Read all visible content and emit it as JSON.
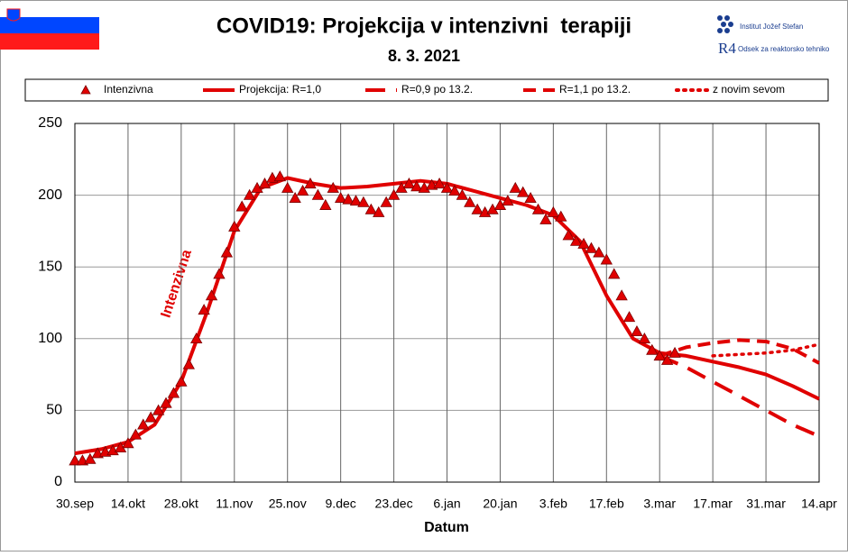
{
  "chart_data": {
    "type": "line",
    "title": "COVID19: Projekcija v intenzivni  terapiji",
    "subtitle": "8. 3. 2021",
    "logos": [
      "Institut Jožef Stefan",
      "R4",
      "Odsek za reaktorsko tehniko"
    ],
    "x_label": "Datum",
    "annotation": "Intenzivna",
    "xlim": [
      0,
      196
    ],
    "xticks": [
      {
        "value": 0,
        "label": "30.sep"
      },
      {
        "value": 14,
        "label": "14.okt"
      },
      {
        "value": 28,
        "label": "28.okt"
      },
      {
        "value": 42,
        "label": "11.nov"
      },
      {
        "value": 56,
        "label": "25.nov"
      },
      {
        "value": 70,
        "label": "9.dec"
      },
      {
        "value": 84,
        "label": "23.dec"
      },
      {
        "value": 98,
        "label": "6.jan"
      },
      {
        "value": 112,
        "label": "20.jan"
      },
      {
        "value": 126,
        "label": "3.feb"
      },
      {
        "value": 140,
        "label": "17.feb"
      },
      {
        "value": 154,
        "label": "3.mar"
      },
      {
        "value": 168,
        "label": "17.mar"
      },
      {
        "value": 182,
        "label": "31.mar"
      },
      {
        "value": 196,
        "label": "14.apr"
      }
    ],
    "ylim": [
      0,
      250
    ],
    "yticks": [
      0,
      50,
      100,
      150,
      200,
      250
    ],
    "grid": true,
    "series": [
      {
        "name": "Intenzivna",
        "color": "#e00000",
        "style": "triangle",
        "x": [
          0,
          2,
          4,
          6,
          8,
          10,
          12,
          14,
          16,
          18,
          20,
          22,
          24,
          26,
          28,
          30,
          32,
          34,
          36,
          38,
          40,
          42,
          44,
          46,
          48,
          50,
          52,
          54,
          56,
          58,
          60,
          62,
          64,
          66,
          68,
          70,
          72,
          74,
          76,
          78,
          80,
          82,
          84,
          86,
          88,
          90,
          92,
          94,
          96,
          98,
          100,
          102,
          104,
          106,
          108,
          110,
          112,
          114,
          116,
          118,
          120,
          122,
          124,
          126,
          128,
          130,
          132,
          134,
          136,
          138,
          140,
          142,
          144,
          146,
          148,
          150,
          152,
          154,
          156,
          158
        ],
        "values": [
          15,
          15,
          16,
          20,
          21,
          22,
          24,
          27,
          33,
          40,
          45,
          50,
          55,
          62,
          70,
          82,
          100,
          120,
          130,
          145,
          160,
          178,
          192,
          200,
          205,
          208,
          212,
          213,
          205,
          198,
          203,
          208,
          200,
          193,
          205,
          198,
          197,
          196,
          195,
          190,
          188,
          195,
          200,
          205,
          208,
          206,
          205,
          207,
          208,
          205,
          203,
          200,
          195,
          190,
          188,
          190,
          193,
          196,
          205,
          202,
          198,
          190,
          183,
          188,
          185,
          172,
          168,
          166,
          163,
          160,
          155,
          145,
          130,
          115,
          105,
          100,
          92,
          88,
          85,
          90
        ]
      },
      {
        "name": "Projekcija: R=1,0",
        "color": "#e00000",
        "style": "solid",
        "x": [
          0,
          7,
          14,
          21,
          28,
          35,
          42,
          49,
          56,
          63,
          70,
          77,
          84,
          91,
          98,
          105,
          112,
          119,
          126,
          133,
          140,
          147,
          154,
          161,
          168,
          175,
          182,
          189,
          196
        ],
        "values": [
          20,
          23,
          28,
          40,
          70,
          120,
          175,
          205,
          212,
          208,
          205,
          206,
          208,
          210,
          208,
          203,
          198,
          193,
          186,
          168,
          130,
          100,
          90,
          88,
          84,
          80,
          75,
          67,
          58
        ]
      },
      {
        "name": "R=0,9 po 13.2.",
        "color": "#e00000",
        "style": "longdash",
        "x": [
          154,
          161,
          168,
          175,
          182,
          189,
          196
        ],
        "values": [
          88,
          80,
          70,
          60,
          50,
          40,
          32
        ]
      },
      {
        "name": "R=1,1 po 13.2.",
        "color": "#e00000",
        "style": "dash",
        "x": [
          154,
          161,
          168,
          175,
          182,
          189,
          196
        ],
        "values": [
          88,
          94,
          97,
          99,
          98,
          93,
          83
        ]
      },
      {
        "name": "z novim sevom",
        "color": "#e00000",
        "style": "dot",
        "x": [
          154,
          161,
          168,
          175,
          182,
          189,
          196
        ],
        "values": [
          null,
          null,
          88,
          89,
          90,
          92,
          96
        ]
      }
    ]
  }
}
